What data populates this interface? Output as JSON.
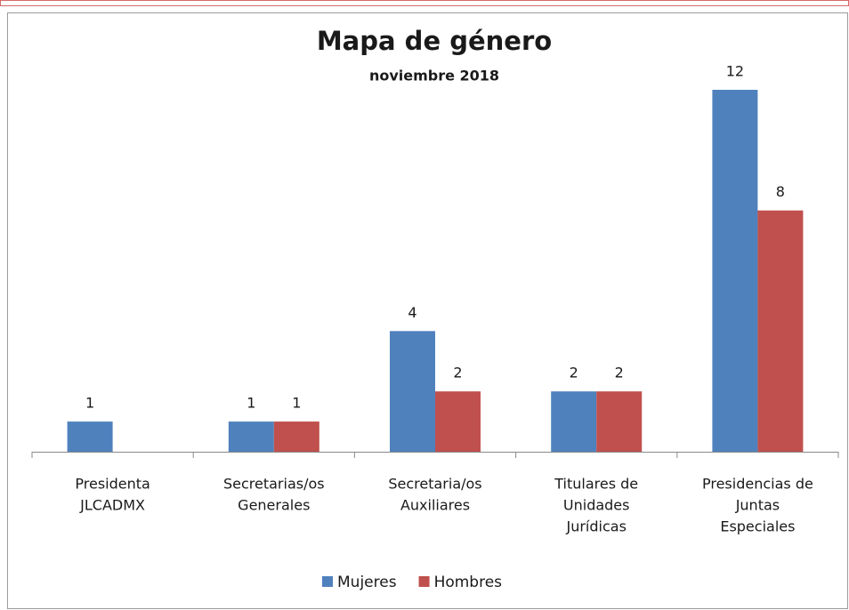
{
  "chart_data": {
    "type": "bar",
    "title": "Mapa de género",
    "subtitle": "noviembre 2018",
    "categories": [
      [
        "Presidenta",
        "JLCADMX"
      ],
      [
        "Secretarias/os",
        "Generales"
      ],
      [
        "Secretaria/os",
        "Auxiliares"
      ],
      [
        "Titulares de",
        "Unidades",
        "Jurídicas"
      ],
      [
        "Presidencias de",
        "Juntas",
        "Especiales"
      ]
    ],
    "series": [
      {
        "name": "Mujeres",
        "color": "#4f81bd",
        "values": [
          1,
          1,
          4,
          2,
          12
        ]
      },
      {
        "name": "Hombres",
        "color": "#c0504d",
        "values": [
          null,
          1,
          2,
          2,
          8
        ]
      }
    ],
    "ylim": [
      0,
      12
    ],
    "legend": "bottom"
  }
}
